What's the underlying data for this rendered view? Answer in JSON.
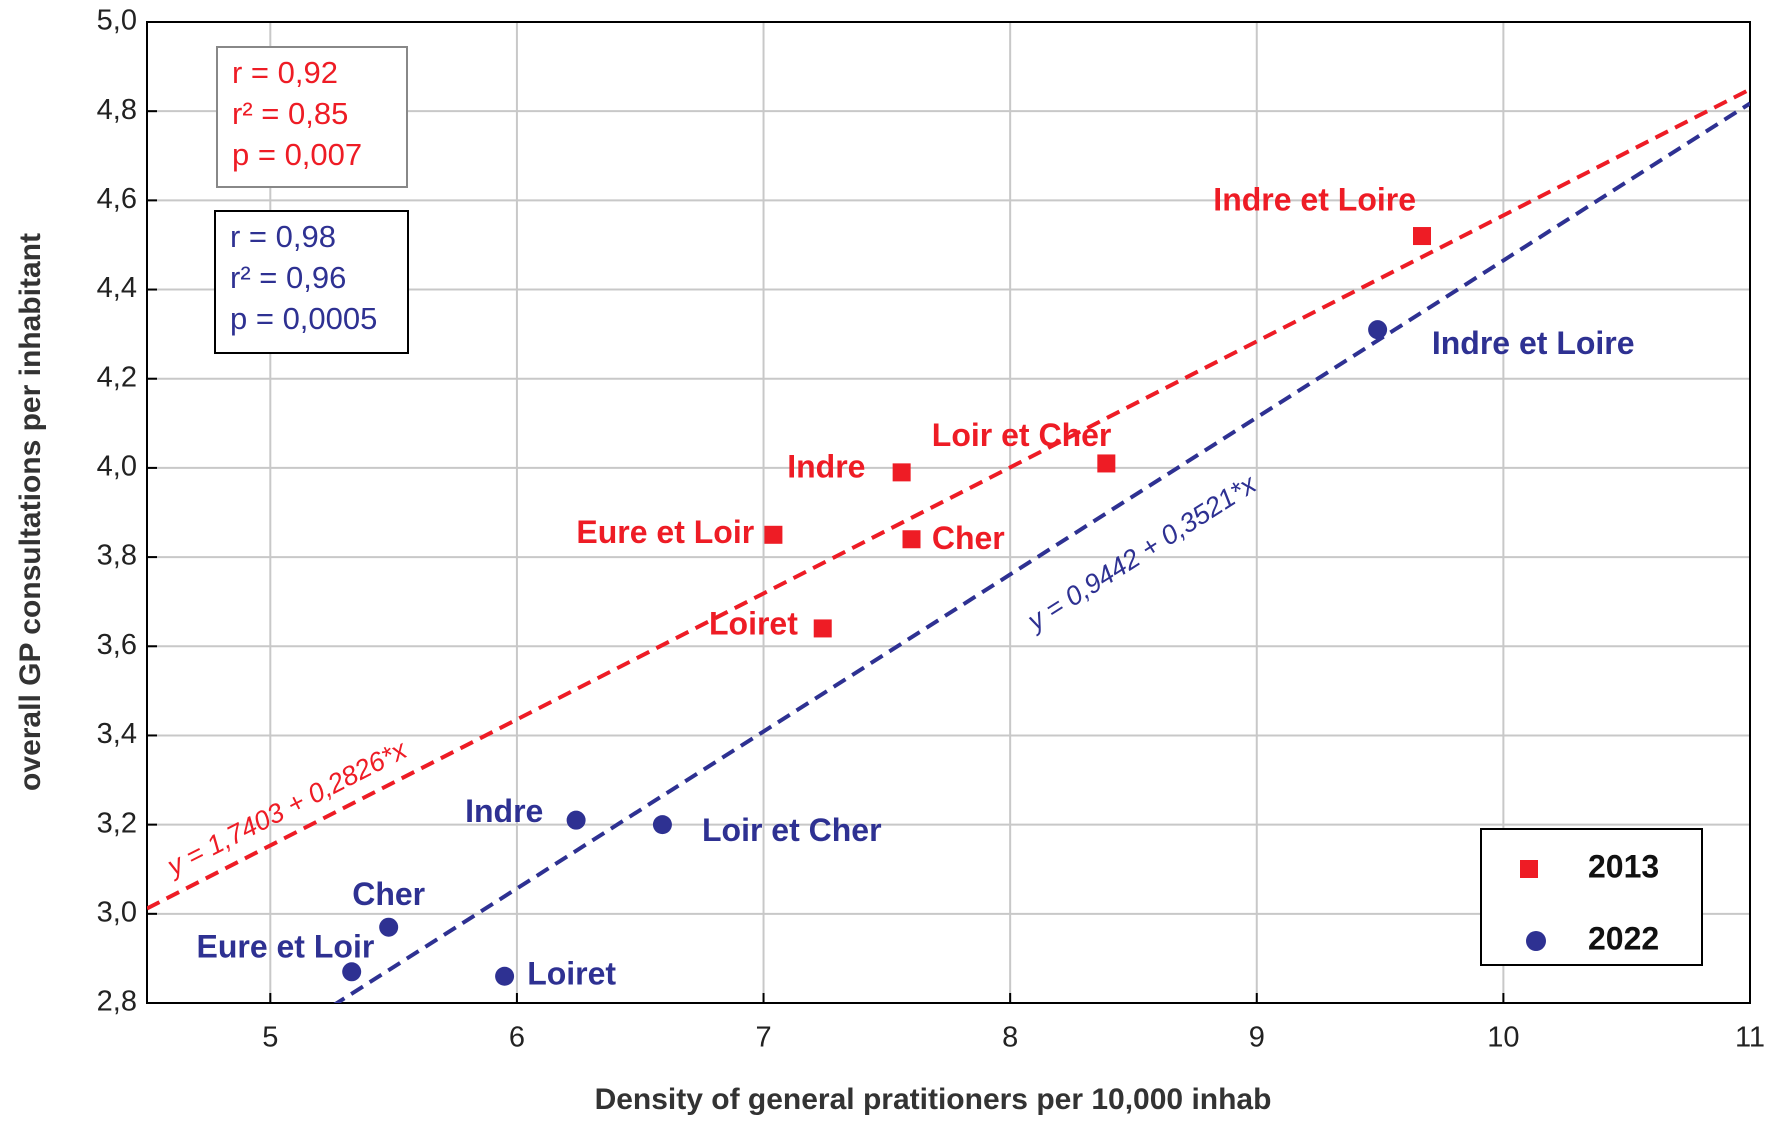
{
  "chart_data": {
    "type": "scatter",
    "xlabel": "Density of general pratitioners  per 10,000 inhab",
    "ylabel": "overall GP consultations per inhabitant",
    "xlim": [
      4.5,
      11
    ],
    "ylim": [
      2.8,
      5.0
    ],
    "xticks": [
      5,
      6,
      7,
      8,
      9,
      10,
      11
    ],
    "yticks": [
      {
        "value": 2.8,
        "label": "2,8"
      },
      {
        "value": 3.0,
        "label": "3,0"
      },
      {
        "value": 3.2,
        "label": "3,2"
      },
      {
        "value": 3.4,
        "label": "3,4"
      },
      {
        "value": 3.6,
        "label": "3,6"
      },
      {
        "value": 3.8,
        "label": "3,8"
      },
      {
        "value": 4.0,
        "label": "4,0"
      },
      {
        "value": 4.2,
        "label": "4,2"
      },
      {
        "value": 4.4,
        "label": "4,4"
      },
      {
        "value": 4.6,
        "label": "4,6"
      },
      {
        "value": 4.8,
        "label": "4,8"
      },
      {
        "value": 5.0,
        "label": "5,0"
      }
    ],
    "grid": true,
    "legend": "lower right",
    "series": [
      {
        "name": "2013",
        "color": "#ee1c25",
        "marker": "square",
        "labels": [
          "Indre et Loire",
          "Loir et Cher",
          "Indre",
          "Cher",
          "Eure et Loir",
          "Loiret"
        ],
        "x": [
          9.67,
          8.39,
          7.56,
          7.6,
          7.04,
          7.24
        ],
        "values": [
          4.52,
          4.01,
          3.99,
          3.84,
          3.85,
          3.64
        ],
        "stats": [
          "r  = 0,92",
          "r² = 0,85",
          "p = 0,007"
        ]
      },
      {
        "name": "2022",
        "color": "#2e3192",
        "marker": "circle",
        "labels": [
          "Indre et Loire",
          "Indre",
          "Loir et Cher",
          "Cher",
          "Eure et Loir",
          "Loiret"
        ],
        "x": [
          9.49,
          6.24,
          6.59,
          5.48,
          5.33,
          5.95
        ],
        "values": [
          4.31,
          3.21,
          3.2,
          2.97,
          2.87,
          2.86
        ],
        "stats": [
          "r  = 0,98",
          "r² = 0,96",
          "p = 0,0005"
        ]
      }
    ],
    "fits": [
      {
        "label": "y = 1,7403 + 0,2826*x",
        "intercept": 1.7403,
        "slope": 0.2826,
        "color": "#ee1c25"
      },
      {
        "label": "y = 0,9442 + 0,3521*x",
        "intercept": 0.9442,
        "slope": 0.3521,
        "color": "#2e3192"
      }
    ]
  }
}
